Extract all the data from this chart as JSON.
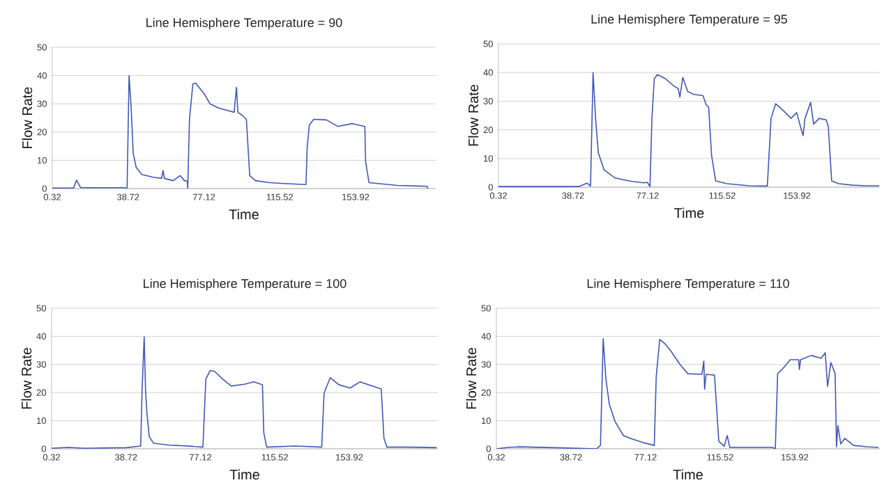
{
  "chart_data": [
    {
      "type": "line",
      "title": "Line Hemisphere Temperature = 90",
      "xlabel": "Time",
      "ylabel": "Flow Rate",
      "color": "#3f57b8",
      "grid": "y",
      "xlim": [
        0.32,
        194.5
      ],
      "ylim": [
        0,
        50
      ],
      "xticks": [
        0.32,
        38.72,
        77.12,
        115.52,
        153.92
      ],
      "yticks": [
        0,
        10,
        20,
        30,
        40,
        50
      ],
      "x": [
        0.32,
        11.1,
        12.6,
        14.7,
        37,
        38.2,
        39.2,
        40.2,
        41.3,
        42.8,
        45.6,
        51.4,
        55.7,
        56.4,
        57.1,
        61.5,
        65.1,
        67.2,
        68.7,
        68.9,
        69.8,
        71.5,
        72.9,
        77.3,
        80.2,
        84.5,
        88.8,
        92.4,
        93.6,
        94.3,
        96.7,
        98.6,
        100.3,
        103.2,
        110.4,
        117.6,
        128.8,
        129.4,
        130.5,
        132.7,
        139.2,
        144.9,
        152.1,
        158.6,
        159,
        160.7,
        167.9,
        175.1,
        185.2,
        190.2,
        190.5
      ],
      "values": [
        0.2,
        0.2,
        3,
        0.3,
        0.3,
        0,
        40,
        29.5,
        12.5,
        7.5,
        5,
        4,
        3.6,
        6.4,
        3.6,
        2.8,
        4.6,
        2.8,
        2.6,
        0,
        24.5,
        37,
        37.3,
        33.5,
        30,
        28.5,
        27.7,
        27,
        35.9,
        27,
        25.8,
        24.5,
        4.6,
        2.8,
        2.1,
        1.8,
        1.4,
        14.5,
        22.5,
        24.5,
        24.3,
        22,
        23,
        22,
        9.6,
        2.1,
        1.6,
        1.1,
        0.9,
        0.8,
        0
      ]
    },
    {
      "type": "line",
      "title": "Line Hemisphere Temperature = 95",
      "xlabel": "Time",
      "ylabel": "Flow Rate",
      "color": "#3f57b8",
      "grid": "y",
      "xlim": [
        0.32,
        196.6
      ],
      "ylim": [
        0,
        50
      ],
      "xticks": [
        0.32,
        38.72,
        77.12,
        115.52,
        153.92
      ],
      "yticks": [
        0,
        10,
        20,
        30,
        40,
        50
      ],
      "x": [
        0.32,
        41.6,
        45.9,
        47.7,
        49,
        50.3,
        51.7,
        54.6,
        60.3,
        69,
        75.4,
        76.9,
        78.3,
        79.3,
        80.5,
        82.2,
        86.3,
        90.6,
        92.8,
        93.7,
        95.2,
        97.7,
        100.6,
        105.6,
        107.1,
        108.5,
        110,
        112.1,
        117.9,
        129.4,
        138.7,
        140.6,
        143,
        146.6,
        150.9,
        153.8,
        156,
        157.1,
        158.1,
        161,
        162.5,
        165.4,
        169,
        170.1,
        171.8,
        175.4,
        182.6,
        189.8,
        196.3
      ],
      "values": [
        0.2,
        0.2,
        1.4,
        0.4,
        40,
        24,
        12,
        6.1,
        3.2,
        2,
        1.5,
        1.7,
        0.2,
        24,
        37.8,
        39.3,
        37.8,
        35.3,
        34.4,
        31.4,
        38.3,
        33.4,
        32.4,
        31.9,
        28.9,
        27.9,
        11.1,
        2.2,
        1.2,
        0.5,
        0.4,
        24,
        29.1,
        26.9,
        24,
        26,
        20.5,
        18,
        24,
        29.6,
        22,
        24,
        23.5,
        21,
        2.2,
        1.2,
        0.7,
        0.5,
        0.5
      ]
    },
    {
      "type": "line",
      "title": "Line Hemisphere Temperature = 100",
      "xlabel": "Time",
      "ylabel": "Flow Rate",
      "color": "#3f57b8",
      "grid": "y",
      "xlim": [
        0.32,
        199.6
      ],
      "ylim": [
        0,
        50
      ],
      "xticks": [
        0.32,
        38.72,
        77.12,
        115.52,
        153.92
      ],
      "yticks": [
        0,
        10,
        20,
        30,
        40,
        50
      ],
      "x": [
        0.32,
        9.1,
        17.1,
        39,
        46.3,
        47,
        48.1,
        48.8,
        49.5,
        50.7,
        52.9,
        60.9,
        72.6,
        74,
        78.4,
        79.9,
        82.1,
        84.3,
        88.6,
        93,
        100.3,
        104.7,
        109.1,
        109.8,
        111.3,
        125.9,
        139.7,
        140.9,
        144.1,
        148.5,
        154.3,
        159.4,
        166,
        170.4,
        171.8,
        173.3,
        185,
        199
      ],
      "values": [
        0.2,
        0.5,
        0.2,
        0.4,
        1,
        20.8,
        39.8,
        20.8,
        12.8,
        4.3,
        2,
        1.3,
        0.9,
        0.8,
        0.6,
        24.8,
        27.8,
        27.6,
        24.8,
        22.3,
        23,
        23.8,
        22.8,
        5.8,
        0.6,
        1,
        0.6,
        19.8,
        25.3,
        22.8,
        21.6,
        23.8,
        22.3,
        21.3,
        3.8,
        0.6,
        0.6,
        0.4
      ]
    },
    {
      "type": "line",
      "title": "Line Hemisphere Temperature = 110",
      "xlabel": "Time",
      "ylabel": "Flow Rate",
      "color": "#3f57b8",
      "grid": "y",
      "xlim": [
        0.32,
        197.7
      ],
      "ylim": [
        0,
        50
      ],
      "xticks": [
        0.32,
        38.72,
        77.12,
        115.52,
        153.92
      ],
      "yticks": [
        0,
        10,
        20,
        30,
        40,
        50
      ],
      "x": [
        0.32,
        6.5,
        11.6,
        29.6,
        51.9,
        53.9,
        55.3,
        56.7,
        58.5,
        61.4,
        65.7,
        70,
        75.8,
        81.6,
        82.6,
        84.4,
        87.3,
        90.2,
        94.6,
        98.9,
        106.1,
        107.1,
        107.5,
        108.3,
        112.6,
        114.8,
        117.6,
        119.1,
        120.5,
        133.5,
        142.2,
        143.9,
        145.1,
        148,
        151.6,
        155.9,
        156.3,
        156.9,
        162.4,
        167.5,
        169.6,
        170.8,
        172.5,
        174.7,
        175.4,
        176.1,
        177.6,
        179.7,
        184.1,
        191.3,
        197
      ],
      "values": [
        0,
        0.5,
        0.7,
        0.4,
        0,
        1.2,
        39.2,
        24.7,
        15.7,
        9.7,
        4.7,
        3.5,
        2.2,
        1.2,
        25.7,
        38.9,
        37.2,
        34.7,
        30.2,
        26.7,
        26.5,
        31.2,
        21.2,
        26.5,
        26.2,
        2.7,
        0.9,
        4.7,
        0.5,
        0.5,
        0.5,
        0,
        26.7,
        28.7,
        31.7,
        31.7,
        28.2,
        31.7,
        33.2,
        32.2,
        34.2,
        22.2,
        30.7,
        26.7,
        0.7,
        8.2,
        1.7,
        3.7,
        1.2,
        0.7,
        0.5
      ]
    }
  ]
}
